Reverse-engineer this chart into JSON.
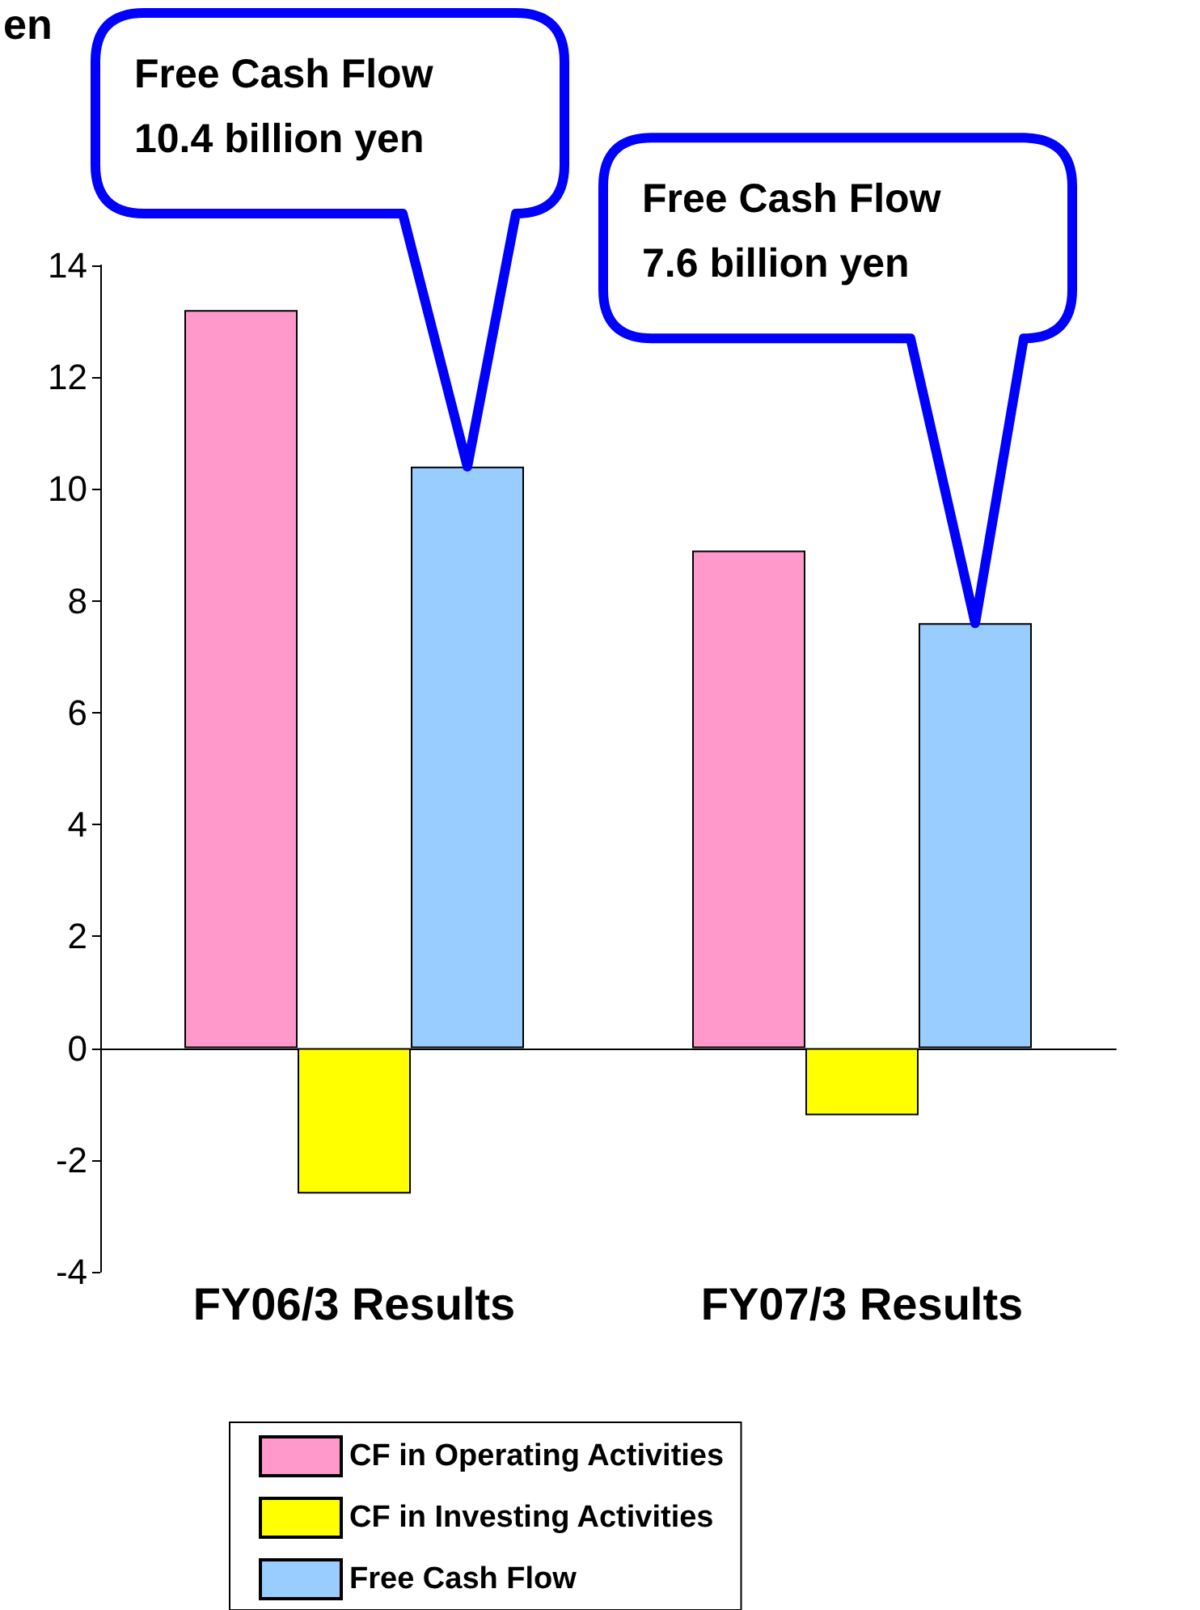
{
  "chart_data": {
    "type": "bar",
    "ylabel": "en",
    "categories": [
      "FY06/3 Results",
      "FY07/3 Results"
    ],
    "series": [
      {
        "name": "CF in Operating Activities",
        "color": "#ff99cc",
        "values": [
          13.2,
          8.9
        ]
      },
      {
        "name": "CF in Investing Activities",
        "color": "#ffff00",
        "values": [
          -2.6,
          -1.2
        ]
      },
      {
        "name": "Free Cash Flow",
        "color": "#99ccff",
        "values": [
          10.4,
          7.6
        ]
      }
    ],
    "ylim": [
      -4,
      14
    ],
    "yticks": [
      -4,
      -2,
      0,
      2,
      4,
      6,
      8,
      10,
      12,
      14
    ],
    "legend": "bottom",
    "annotations": [
      "Free Cash Flow\n10.4 billion yen",
      "Free Cash Flow\n7.6 billion yen"
    ]
  }
}
